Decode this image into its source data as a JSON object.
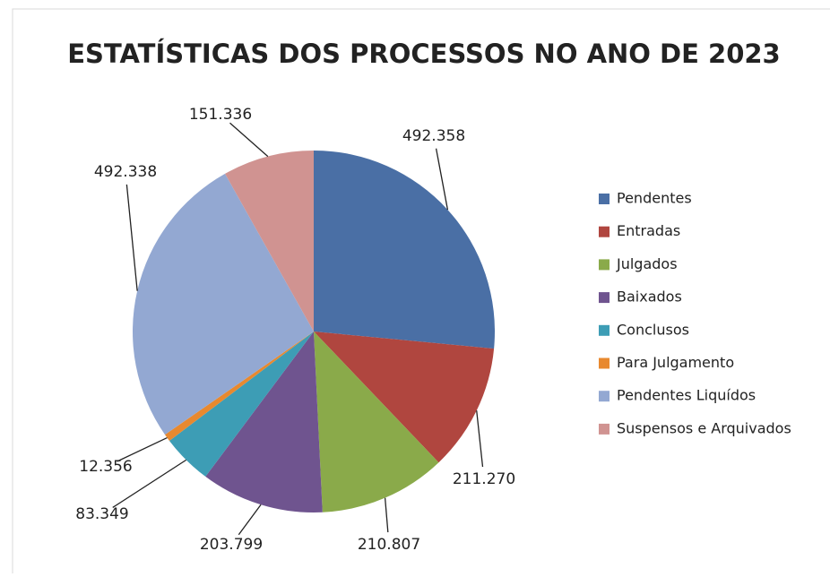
{
  "chart_data": {
    "type": "pie",
    "title": "ESTATÍSTICAS DOS PROCESSOS NO ANO DE 2023",
    "categories": [
      "Pendentes",
      "Entradas",
      "Julgados",
      "Baixados",
      "Conclusos",
      "Para Julgamento",
      "Pendentes Liquídos",
      "Suspensos e Arquivados"
    ],
    "values": [
      492358,
      211270,
      210807,
      203799,
      83349,
      12356,
      492338,
      151336
    ],
    "value_labels": [
      "492.358",
      "211.270",
      "210.807",
      "203.799",
      "83.349",
      "12.356",
      "492.338",
      "151.336"
    ],
    "colors": [
      "#4a6fa5",
      "#b0463f",
      "#8aaa4a",
      "#6f548f",
      "#3d9db5",
      "#e8892f",
      "#93a8d2",
      "#d09391"
    ],
    "legend": "right"
  }
}
